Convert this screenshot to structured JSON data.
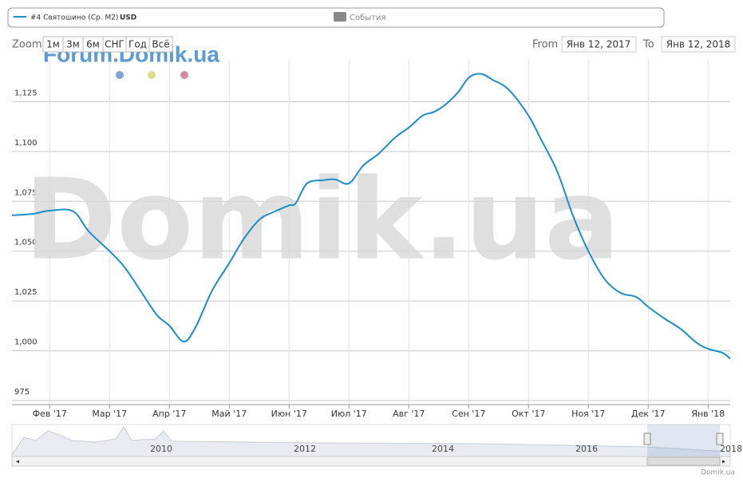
{
  "chart_data": {
    "type": "line",
    "series": [
      {
        "name": "#4 Святошино (Ср. М2)",
        "unit": "USD",
        "color": "#1a8fc9",
        "x": [
          0.37,
          0.72,
          1,
          1.39,
          1.65,
          2,
          2.25,
          2.52,
          2.79,
          3,
          3.24,
          3.44,
          3.71,
          4,
          4.24,
          4.51,
          4.77,
          5,
          5.11,
          5.3,
          5.57,
          5.77,
          6,
          6.24,
          6.5,
          6.77,
          7,
          7.23,
          7.43,
          7.63,
          7.83,
          8,
          8.2,
          8.4,
          8.67,
          9,
          9.21,
          9.48,
          9.74,
          10,
          10.27,
          10.54,
          10.8,
          11,
          11.28,
          11.54,
          11.81,
          12,
          12.24,
          12.37
        ],
        "values": [
          1068,
          1068.7,
          1070.3,
          1070,
          1060,
          1050,
          1042,
          1030,
          1018,
          1012.6,
          1004.6,
          1012,
          1030,
          1044,
          1056,
          1066,
          1070,
          1073,
          1074,
          1084,
          1085.6,
          1086,
          1084,
          1093,
          1099,
          1107,
          1112,
          1118,
          1120,
          1124,
          1130,
          1137,
          1139,
          1136,
          1131,
          1118,
          1106,
          1090,
          1068,
          1050,
          1036,
          1029,
          1027,
          1022,
          1016,
          1011,
          1004,
          1001,
          999,
          996
        ]
      }
    ],
    "events_label": "События",
    "zoom_label": "Zoom",
    "zoom_buttons": [
      "1м",
      "3м",
      "6м",
      "СНГ",
      "Год",
      "Всё"
    ],
    "range_from_label": "From",
    "range_from": "Янв 12, 2017",
    "range_to_label": "To",
    "range_to": "Янв 12, 2018",
    "watermark_forum": "Forum.Domik.ua",
    "watermark": "Domik.ua",
    "credit": "Domik.ua",
    "xlim": [
      0.37,
      12.37
    ],
    "xticks": [
      {
        "value": 1,
        "label": "Фев '17"
      },
      {
        "value": 2,
        "label": "Мар '17"
      },
      {
        "value": 3,
        "label": "Апр '17"
      },
      {
        "value": 4,
        "label": "Май '17"
      },
      {
        "value": 5,
        "label": "Июн '17"
      },
      {
        "value": 6,
        "label": "Июл '17"
      },
      {
        "value": 7,
        "label": "Авг '17"
      },
      {
        "value": 8,
        "label": "Сен '17"
      },
      {
        "value": 9,
        "label": "Окт '17"
      },
      {
        "value": 10,
        "label": "Ноя '17"
      },
      {
        "value": 11,
        "label": "Дек '17"
      },
      {
        "value": 12,
        "label": "Янв '18"
      }
    ],
    "ylim": [
      973,
      1146
    ],
    "yticks": [
      975,
      {
        "value": 1000,
        "label": "1,000"
      },
      {
        "value": 1025,
        "label": "1,025"
      },
      {
        "value": 1050,
        "label": "1,050"
      },
      {
        "value": 1075,
        "label": "1,075"
      },
      {
        "value": 1100,
        "label": "1,100"
      },
      {
        "value": 1125,
        "label": "1,125"
      }
    ],
    "grid": true,
    "navigator_labels": [
      "2010",
      "2012",
      "2014",
      "2016",
      "2018"
    ]
  }
}
